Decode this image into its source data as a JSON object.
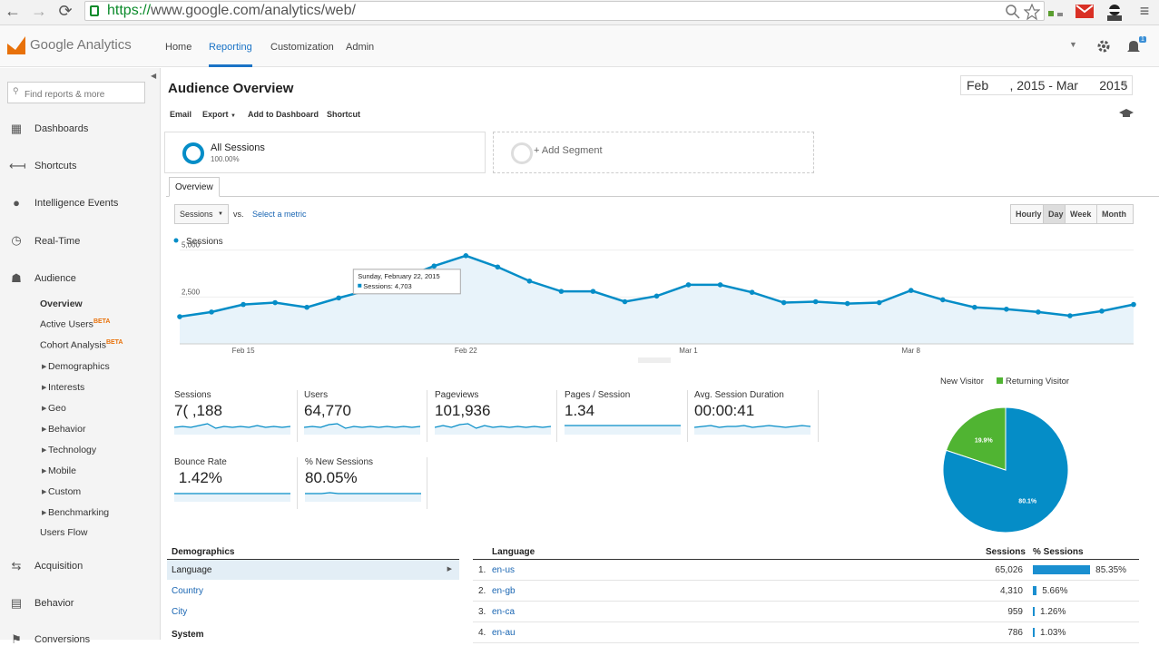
{
  "browser": {
    "url_scheme": "https://",
    "url_rest": "www.google.com/analytics/web/",
    "back": "←",
    "forward": "→",
    "reload": "⟳",
    "menu": "≡"
  },
  "header": {
    "logo_text": "Google Analytics",
    "nav": [
      "Home",
      "Reporting",
      "Customization",
      "Admin"
    ],
    "active_nav": "Reporting",
    "notif_count": "1"
  },
  "sidebar": {
    "search_placeholder": "Find reports & more",
    "items": [
      {
        "label": "Dashboards",
        "icon": "dashboard-icon"
      },
      {
        "label": "Shortcuts",
        "icon": "shortcut-icon"
      },
      {
        "label": "Intelligence Events",
        "icon": "lightbulb-icon"
      },
      {
        "label": "Real-Time",
        "icon": "clock-icon"
      },
      {
        "label": "Audience",
        "icon": "people-icon"
      }
    ],
    "audience_sub": {
      "overview": "Overview",
      "active_users": "Active Users",
      "cohort": "Cohort Analysis",
      "beta": "BETA",
      "expandables": [
        "Demographics",
        "Interests",
        "Geo",
        "Behavior",
        "Technology",
        "Mobile",
        "Custom",
        "Benchmarking"
      ],
      "users_flow": "Users Flow"
    },
    "bottom_items": [
      {
        "label": "Acquisition",
        "icon": "acquisition-icon"
      },
      {
        "label": "Behavior",
        "icon": "behavior-icon"
      },
      {
        "label": "Conversions",
        "icon": "conversions-icon"
      }
    ]
  },
  "main": {
    "title": "Audience Overview",
    "date_range": "Feb      , 2015 - Mar      2015",
    "toolbar": [
      "Email",
      "Export",
      "Add to Dashboard",
      "Shortcut"
    ],
    "segment_all": "All Sessions",
    "segment_all_pct": "100.00%",
    "add_segment": "+ Add Segment",
    "tab": "Overview",
    "metric_select": "Sessions",
    "vs": "vs.",
    "select_metric": "Select a metric",
    "granularity": [
      "Hourly",
      "Day",
      "Week",
      "Month"
    ],
    "active_granularity": "Day"
  },
  "chart_data": {
    "type": "area",
    "legend": "Sessions",
    "yticks": [
      "5,000",
      "2,500"
    ],
    "ylim": [
      0,
      6000
    ],
    "xticks": [
      {
        "label": "Feb 15",
        "index": 2
      },
      {
        "label": "Feb 22",
        "index": 9
      },
      {
        "label": "Mar 1",
        "index": 16
      },
      {
        "label": "Mar 8",
        "index": 23
      }
    ],
    "values": [
      1450,
      1700,
      2100,
      2200,
      1950,
      2450,
      2900,
      3500,
      4150,
      4703,
      4100,
      3350,
      2800,
      2800,
      2250,
      2550,
      3150,
      3150,
      2750,
      2200,
      2250,
      2150,
      2200,
      2850,
      2350,
      1950,
      1850,
      1700,
      1500,
      1750,
      2100
    ],
    "tooltip_title": "Sunday, February 22, 2015",
    "tooltip_value": "Sessions: 4,703",
    "tooltip_index": 9
  },
  "metrics": [
    {
      "label": "Sessions",
      "value": "7( ,188"
    },
    {
      "label": "Users",
      "value": "64,770"
    },
    {
      "label": "Pageviews",
      "value": "101,936"
    },
    {
      "label": "Pages / Session",
      "value": "1.34"
    },
    {
      "label": "Avg. Session Duration",
      "value": "00:00:41"
    },
    {
      "label": "Bounce Rate",
      "value": " 1.42%"
    },
    {
      "label": "% New Sessions",
      "value": "80.05%"
    }
  ],
  "pie": {
    "legend": [
      "New Visitor",
      "Returning Visitor"
    ],
    "colors": [
      "#058dc7",
      "#50b432"
    ],
    "values": [
      80.1,
      19.9
    ],
    "labels": [
      "80.1%",
      "19.9%"
    ]
  },
  "demographics": {
    "title": "Demographics",
    "items": [
      "Language",
      "Country",
      "City"
    ],
    "system": "System"
  },
  "language_table": {
    "headers": [
      "Language",
      "Sessions",
      "% Sessions"
    ],
    "rows": [
      {
        "num": "1.",
        "lang": "en-us",
        "sessions": "65,026",
        "pct": "85.35%",
        "value": 85.35
      },
      {
        "num": "2.",
        "lang": "en-gb",
        "sessions": "4,310",
        "pct": "5.66%",
        "value": 5.66
      },
      {
        "num": "3.",
        "lang": "en-ca",
        "sessions": "959",
        "pct": "1.26%",
        "value": 1.26
      },
      {
        "num": "4.",
        "lang": "en-au",
        "sessions": "786",
        "pct": "1.03%",
        "value": 1.03
      }
    ]
  }
}
